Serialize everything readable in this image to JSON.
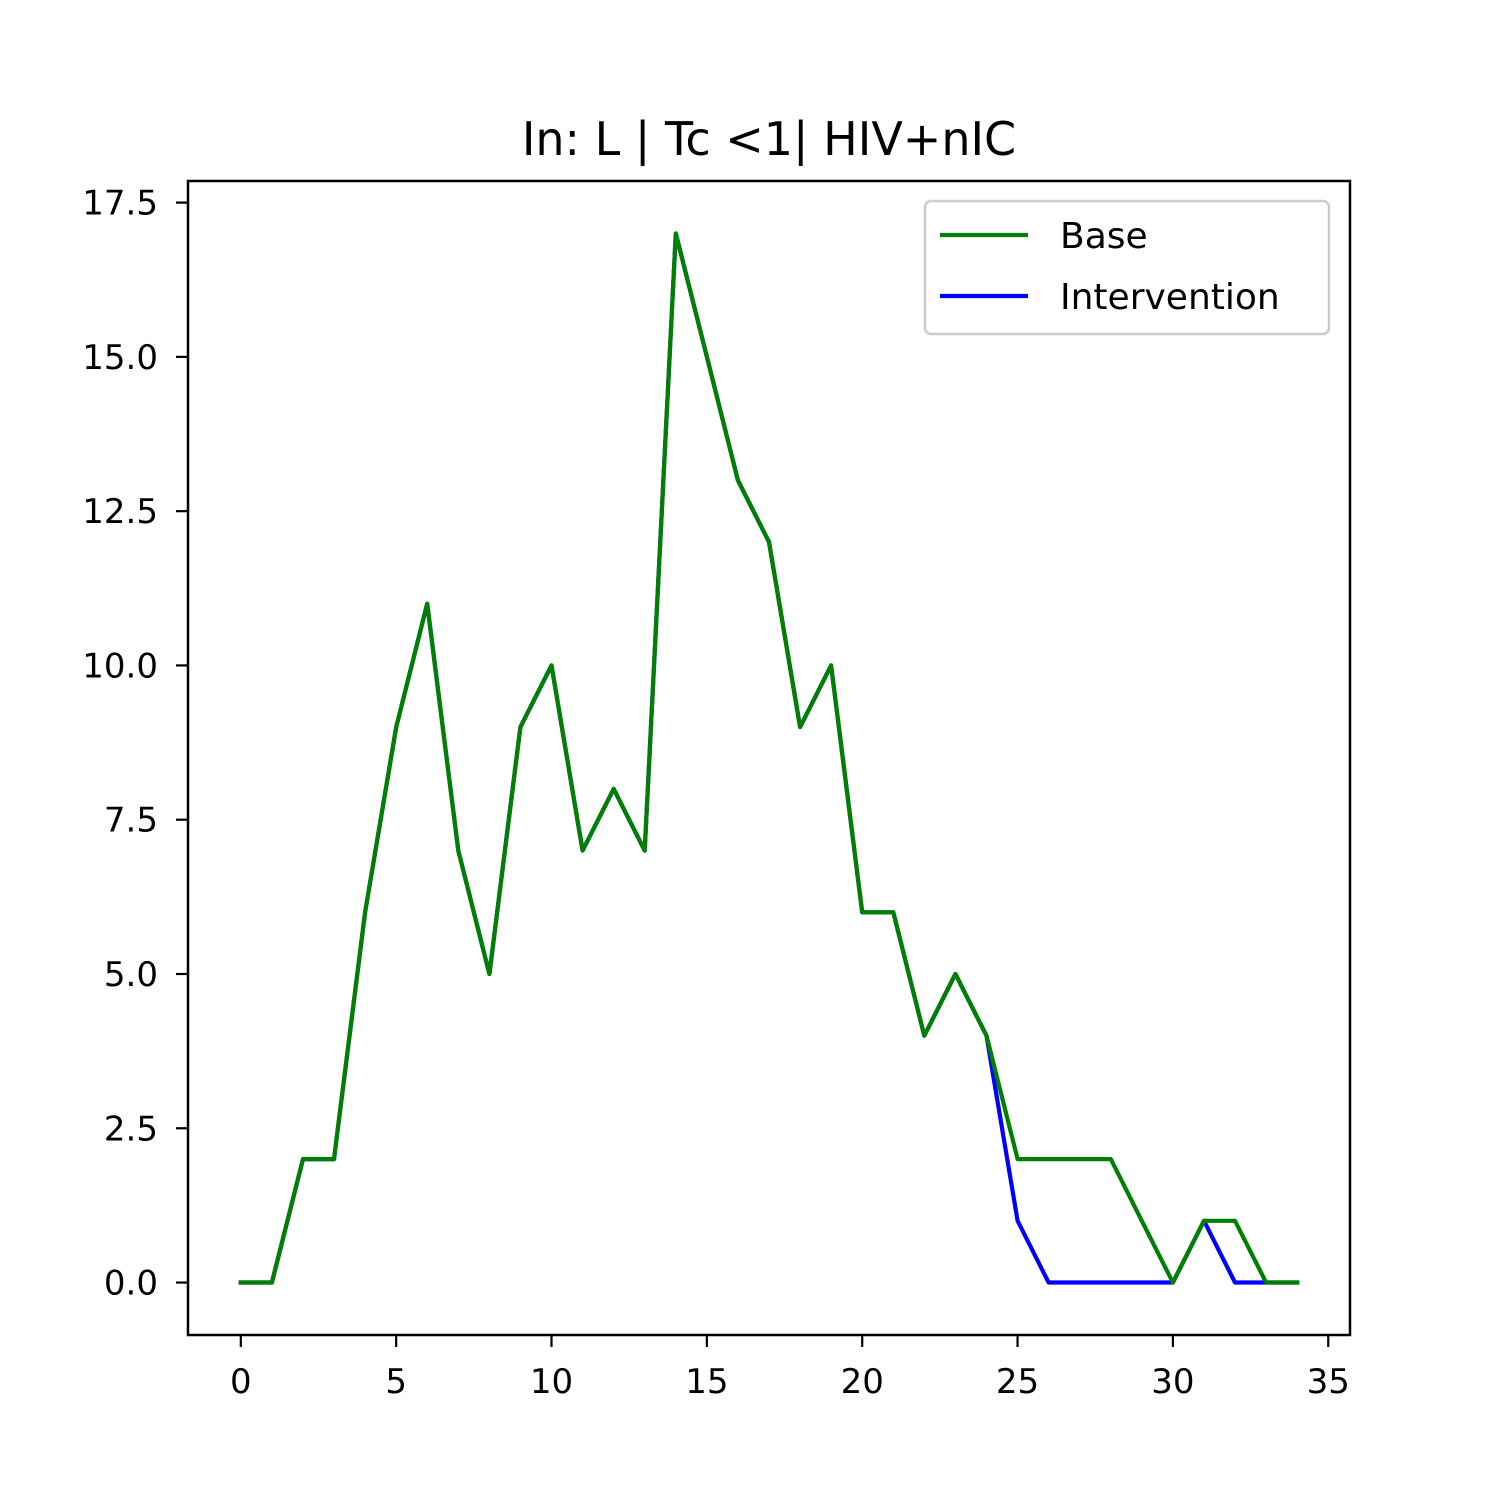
{
  "chart_data": {
    "type": "line",
    "title": "In: L | Tc <1| HIV+nIC",
    "xlabel": "",
    "ylabel": "",
    "xlim": [
      -1.7,
      35.7
    ],
    "ylim": [
      -0.85,
      17.85
    ],
    "x_ticks": [
      0,
      5,
      10,
      15,
      20,
      25,
      30,
      35
    ],
    "x_tick_labels": [
      "0",
      "5",
      "10",
      "15",
      "20",
      "25",
      "30",
      "35"
    ],
    "y_ticks": [
      0,
      2.5,
      5,
      7.5,
      10,
      12.5,
      15,
      17.5
    ],
    "y_tick_labels": [
      "0.0",
      "2.5",
      "5.0",
      "7.5",
      "10.0",
      "12.5",
      "15.0",
      "17.5"
    ],
    "grid": false,
    "legend_position": "top-right",
    "x": [
      0,
      1,
      2,
      3,
      4,
      5,
      6,
      7,
      8,
      9,
      10,
      11,
      12,
      13,
      14,
      15,
      16,
      17,
      18,
      19,
      20,
      21,
      22,
      23,
      24,
      25,
      26,
      27,
      28,
      29,
      30,
      31,
      32,
      33,
      34
    ],
    "series": [
      {
        "name": "Base",
        "color": "#008000",
        "values": [
          0,
          0,
          2,
          2,
          6,
          9,
          11,
          7,
          5,
          9,
          10,
          7,
          8,
          7,
          17,
          15,
          13,
          12,
          9,
          10,
          6,
          6,
          4,
          5,
          4,
          2,
          2,
          2,
          2,
          1,
          0,
          1,
          1,
          0,
          0
        ]
      },
      {
        "name": "Intervention",
        "color": "#0000ff",
        "values": [
          0,
          0,
          2,
          2,
          6,
          9,
          11,
          7,
          5,
          9,
          10,
          7,
          8,
          7,
          17,
          15,
          13,
          12,
          9,
          10,
          6,
          6,
          4,
          5,
          4,
          1,
          0,
          0,
          0,
          0,
          0,
          1,
          0,
          0,
          0
        ]
      }
    ]
  }
}
